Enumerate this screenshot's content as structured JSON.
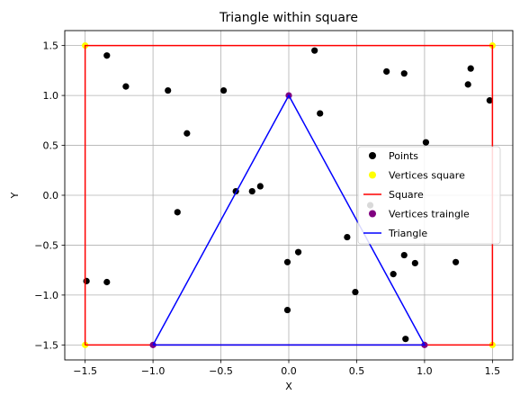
{
  "chart_data": {
    "type": "scatter",
    "title": "Triangle within square",
    "xlabel": "X",
    "ylabel": "Y",
    "xlim": [
      -1.65,
      1.65
    ],
    "ylim": [
      -1.65,
      1.65
    ],
    "xticks": [
      -1.5,
      -1.0,
      -0.5,
      0.0,
      0.5,
      1.0,
      1.5
    ],
    "xtick_labels": [
      "−1.5",
      "−1.0",
      "−0.5",
      "0.0",
      "0.5",
      "1.0",
      "1.5"
    ],
    "yticks": [
      -1.5,
      -1.0,
      -0.5,
      0.0,
      0.5,
      1.0,
      1.5
    ],
    "ytick_labels": [
      "−1.5",
      "−1.0",
      "−0.5",
      "0.0",
      "0.5",
      "1.0",
      "1.5"
    ],
    "grid": true,
    "legend_position": "center-right",
    "series": [
      {
        "name": "Points",
        "kind": "scatter",
        "color": "#000000",
        "points": [
          [
            -1.49,
            -0.86
          ],
          [
            -1.34,
            1.4
          ],
          [
            -1.34,
            -0.87
          ],
          [
            -1.2,
            1.09
          ],
          [
            -0.89,
            1.05
          ],
          [
            -0.75,
            0.62
          ],
          [
            -0.82,
            -0.17
          ],
          [
            -0.48,
            1.05
          ],
          [
            -0.39,
            0.04
          ],
          [
            -0.27,
            0.04
          ],
          [
            -0.21,
            0.09
          ],
          [
            -0.01,
            -0.67
          ],
          [
            -0.01,
            -1.15
          ],
          [
            0.07,
            -0.57
          ],
          [
            0.19,
            1.45
          ],
          [
            0.23,
            0.82
          ],
          [
            0.43,
            -0.42
          ],
          [
            0.49,
            -0.97
          ],
          [
            0.6,
            -0.1
          ],
          [
            0.72,
            1.24
          ],
          [
            0.77,
            -0.79
          ],
          [
            0.85,
            1.22
          ],
          [
            0.85,
            -0.6
          ],
          [
            0.86,
            -1.44
          ],
          [
            0.93,
            -0.68
          ],
          [
            1.01,
            0.53
          ],
          [
            1.23,
            -0.67
          ],
          [
            1.32,
            1.11
          ],
          [
            1.34,
            1.27
          ],
          [
            1.48,
            0.95
          ]
        ]
      },
      {
        "name": "Vertices square",
        "kind": "scatter",
        "color": "#ffff00",
        "points": [
          [
            -1.5,
            -1.5
          ],
          [
            1.5,
            -1.5
          ],
          [
            1.5,
            1.5
          ],
          [
            -1.5,
            1.5
          ]
        ]
      },
      {
        "name": "Square",
        "kind": "line",
        "color": "#ff0000",
        "points": [
          [
            -1.5,
            -1.5
          ],
          [
            1.5,
            -1.5
          ],
          [
            1.5,
            1.5
          ],
          [
            -1.5,
            1.5
          ],
          [
            -1.5,
            -1.5
          ]
        ]
      },
      {
        "name": "Vertices traingle",
        "kind": "scatter",
        "color": "#800080",
        "points": [
          [
            -1.0,
            -1.5
          ],
          [
            1.0,
            -1.5
          ],
          [
            0.0,
            1.0
          ]
        ]
      },
      {
        "name": "Triangle",
        "kind": "line",
        "color": "#0000ff",
        "points": [
          [
            -1.0,
            -1.5
          ],
          [
            1.0,
            -1.5
          ],
          [
            0.0,
            1.0
          ],
          [
            -1.0,
            -1.5
          ]
        ]
      }
    ]
  }
}
